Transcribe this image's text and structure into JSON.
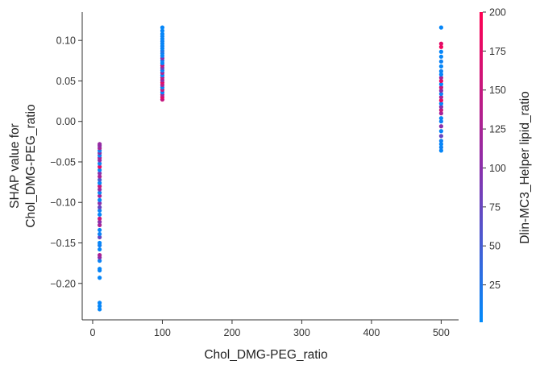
{
  "chart_data": {
    "type": "scatter",
    "title": "",
    "xlabel": "Chol_DMG-PEG_ratio",
    "ylabel_lines": [
      "SHAP value for",
      "Chol_DMG-PEG_ratio"
    ],
    "xlim": [
      -15,
      525
    ],
    "ylim": [
      -0.245,
      0.135
    ],
    "x_ticks": [
      0,
      100,
      200,
      300,
      400,
      500
    ],
    "x_tick_labels": [
      "0",
      "100",
      "200",
      "300",
      "400",
      "500"
    ],
    "y_ticks": [
      -0.2,
      -0.15,
      -0.1,
      -0.05,
      0.0,
      0.05,
      0.1
    ],
    "y_tick_labels": [
      "−0.20",
      "−0.15",
      "−0.10",
      "−0.05",
      "0.00",
      "0.05",
      "0.10"
    ],
    "grid": false,
    "colorbar": {
      "label": "Dlin-MC3_Helper lipid_ratio",
      "range": [
        1,
        200
      ],
      "ticks": [
        25,
        50,
        75,
        100,
        125,
        150,
        175,
        200
      ],
      "tick_labels": [
        "25",
        "50",
        "75",
        "100",
        "125",
        "150",
        "175",
        "200"
      ],
      "color_low": "#008afb",
      "color_mid": "#8b2fab",
      "color_high": "#ff0052"
    },
    "points": [
      {
        "x": 10,
        "y": -0.232,
        "c": 5
      },
      {
        "x": 10,
        "y": -0.228,
        "c": 5
      },
      {
        "x": 10,
        "y": -0.224,
        "c": 5
      },
      {
        "x": 10,
        "y": -0.193,
        "c": 5
      },
      {
        "x": 10,
        "y": -0.184,
        "c": 8
      },
      {
        "x": 10,
        "y": -0.182,
        "c": 5
      },
      {
        "x": 10,
        "y": -0.172,
        "c": 10
      },
      {
        "x": 10,
        "y": -0.168,
        "c": 100
      },
      {
        "x": 10,
        "y": -0.165,
        "c": 125
      },
      {
        "x": 10,
        "y": -0.158,
        "c": 5
      },
      {
        "x": 10,
        "y": -0.153,
        "c": 15
      },
      {
        "x": 10,
        "y": -0.15,
        "c": 5
      },
      {
        "x": 10,
        "y": -0.143,
        "c": 75
      },
      {
        "x": 10,
        "y": -0.139,
        "c": 10
      },
      {
        "x": 10,
        "y": -0.134,
        "c": 5
      },
      {
        "x": 10,
        "y": -0.128,
        "c": 125
      },
      {
        "x": 10,
        "y": -0.124,
        "c": 100
      },
      {
        "x": 10,
        "y": -0.12,
        "c": 150
      },
      {
        "x": 10,
        "y": -0.115,
        "c": 5
      },
      {
        "x": 10,
        "y": -0.11,
        "c": 10
      },
      {
        "x": 10,
        "y": -0.106,
        "c": 75
      },
      {
        "x": 10,
        "y": -0.101,
        "c": 100
      },
      {
        "x": 10,
        "y": -0.097,
        "c": 5
      },
      {
        "x": 10,
        "y": -0.092,
        "c": 125
      },
      {
        "x": 10,
        "y": -0.088,
        "c": 8
      },
      {
        "x": 10,
        "y": -0.084,
        "c": 100
      },
      {
        "x": 10,
        "y": -0.08,
        "c": 150
      },
      {
        "x": 10,
        "y": -0.076,
        "c": 5
      },
      {
        "x": 10,
        "y": -0.072,
        "c": 50
      },
      {
        "x": 10,
        "y": -0.068,
        "c": 125
      },
      {
        "x": 10,
        "y": -0.064,
        "c": 100
      },
      {
        "x": 10,
        "y": -0.06,
        "c": 5
      },
      {
        "x": 10,
        "y": -0.056,
        "c": 175
      },
      {
        "x": 10,
        "y": -0.052,
        "c": 10
      },
      {
        "x": 10,
        "y": -0.048,
        "c": 100
      },
      {
        "x": 10,
        "y": -0.045,
        "c": 125
      },
      {
        "x": 10,
        "y": -0.042,
        "c": 5
      },
      {
        "x": 10,
        "y": -0.039,
        "c": 100
      },
      {
        "x": 10,
        "y": -0.036,
        "c": 10
      },
      {
        "x": 10,
        "y": -0.033,
        "c": 125
      },
      {
        "x": 10,
        "y": -0.03,
        "c": 100
      },
      {
        "x": 10,
        "y": -0.028,
        "c": 110
      },
      {
        "x": 100,
        "y": 0.027,
        "c": 150
      },
      {
        "x": 100,
        "y": 0.03,
        "c": 175
      },
      {
        "x": 100,
        "y": 0.033,
        "c": 125
      },
      {
        "x": 100,
        "y": 0.036,
        "c": 5
      },
      {
        "x": 100,
        "y": 0.039,
        "c": 150
      },
      {
        "x": 100,
        "y": 0.042,
        "c": 10
      },
      {
        "x": 100,
        "y": 0.045,
        "c": 125
      },
      {
        "x": 100,
        "y": 0.048,
        "c": 175
      },
      {
        "x": 100,
        "y": 0.051,
        "c": 100
      },
      {
        "x": 100,
        "y": 0.054,
        "c": 150
      },
      {
        "x": 100,
        "y": 0.057,
        "c": 5
      },
      {
        "x": 100,
        "y": 0.06,
        "c": 125
      },
      {
        "x": 100,
        "y": 0.063,
        "c": 10
      },
      {
        "x": 100,
        "y": 0.066,
        "c": 75
      },
      {
        "x": 100,
        "y": 0.069,
        "c": 150
      },
      {
        "x": 100,
        "y": 0.072,
        "c": 5
      },
      {
        "x": 100,
        "y": 0.075,
        "c": 10
      },
      {
        "x": 100,
        "y": 0.078,
        "c": 100
      },
      {
        "x": 100,
        "y": 0.081,
        "c": 5
      },
      {
        "x": 100,
        "y": 0.084,
        "c": 10
      },
      {
        "x": 100,
        "y": 0.087,
        "c": 25
      },
      {
        "x": 100,
        "y": 0.09,
        "c": 5
      },
      {
        "x": 100,
        "y": 0.093,
        "c": 10
      },
      {
        "x": 100,
        "y": 0.096,
        "c": 5
      },
      {
        "x": 100,
        "y": 0.099,
        "c": 10
      },
      {
        "x": 100,
        "y": 0.102,
        "c": 5
      },
      {
        "x": 100,
        "y": 0.105,
        "c": 8
      },
      {
        "x": 100,
        "y": 0.108,
        "c": 5
      },
      {
        "x": 100,
        "y": 0.112,
        "c": 5
      },
      {
        "x": 100,
        "y": 0.116,
        "c": 5
      },
      {
        "x": 500,
        "y": -0.036,
        "c": 5
      },
      {
        "x": 500,
        "y": -0.032,
        "c": 10
      },
      {
        "x": 500,
        "y": -0.028,
        "c": 5
      },
      {
        "x": 500,
        "y": -0.024,
        "c": 10
      },
      {
        "x": 500,
        "y": -0.018,
        "c": 75
      },
      {
        "x": 500,
        "y": -0.012,
        "c": 5
      },
      {
        "x": 500,
        "y": -0.006,
        "c": 100
      },
      {
        "x": 500,
        "y": 0.0,
        "c": 10
      },
      {
        "x": 500,
        "y": 0.004,
        "c": 5
      },
      {
        "x": 500,
        "y": 0.01,
        "c": 125
      },
      {
        "x": 500,
        "y": 0.014,
        "c": 150
      },
      {
        "x": 500,
        "y": 0.018,
        "c": 100
      },
      {
        "x": 500,
        "y": 0.022,
        "c": 5
      },
      {
        "x": 500,
        "y": 0.026,
        "c": 175
      },
      {
        "x": 500,
        "y": 0.03,
        "c": 125
      },
      {
        "x": 500,
        "y": 0.034,
        "c": 10
      },
      {
        "x": 500,
        "y": 0.038,
        "c": 100
      },
      {
        "x": 500,
        "y": 0.042,
        "c": 150
      },
      {
        "x": 500,
        "y": 0.046,
        "c": 5
      },
      {
        "x": 500,
        "y": 0.05,
        "c": 175
      },
      {
        "x": 500,
        "y": 0.054,
        "c": 125
      },
      {
        "x": 500,
        "y": 0.058,
        "c": 5
      },
      {
        "x": 500,
        "y": 0.062,
        "c": 10
      },
      {
        "x": 500,
        "y": 0.068,
        "c": 5
      },
      {
        "x": 500,
        "y": 0.074,
        "c": 10
      },
      {
        "x": 500,
        "y": 0.08,
        "c": 5
      },
      {
        "x": 500,
        "y": 0.086,
        "c": 5
      },
      {
        "x": 500,
        "y": 0.092,
        "c": 190
      },
      {
        "x": 500,
        "y": 0.096,
        "c": 175
      },
      {
        "x": 500,
        "y": 0.116,
        "c": 5
      }
    ]
  }
}
